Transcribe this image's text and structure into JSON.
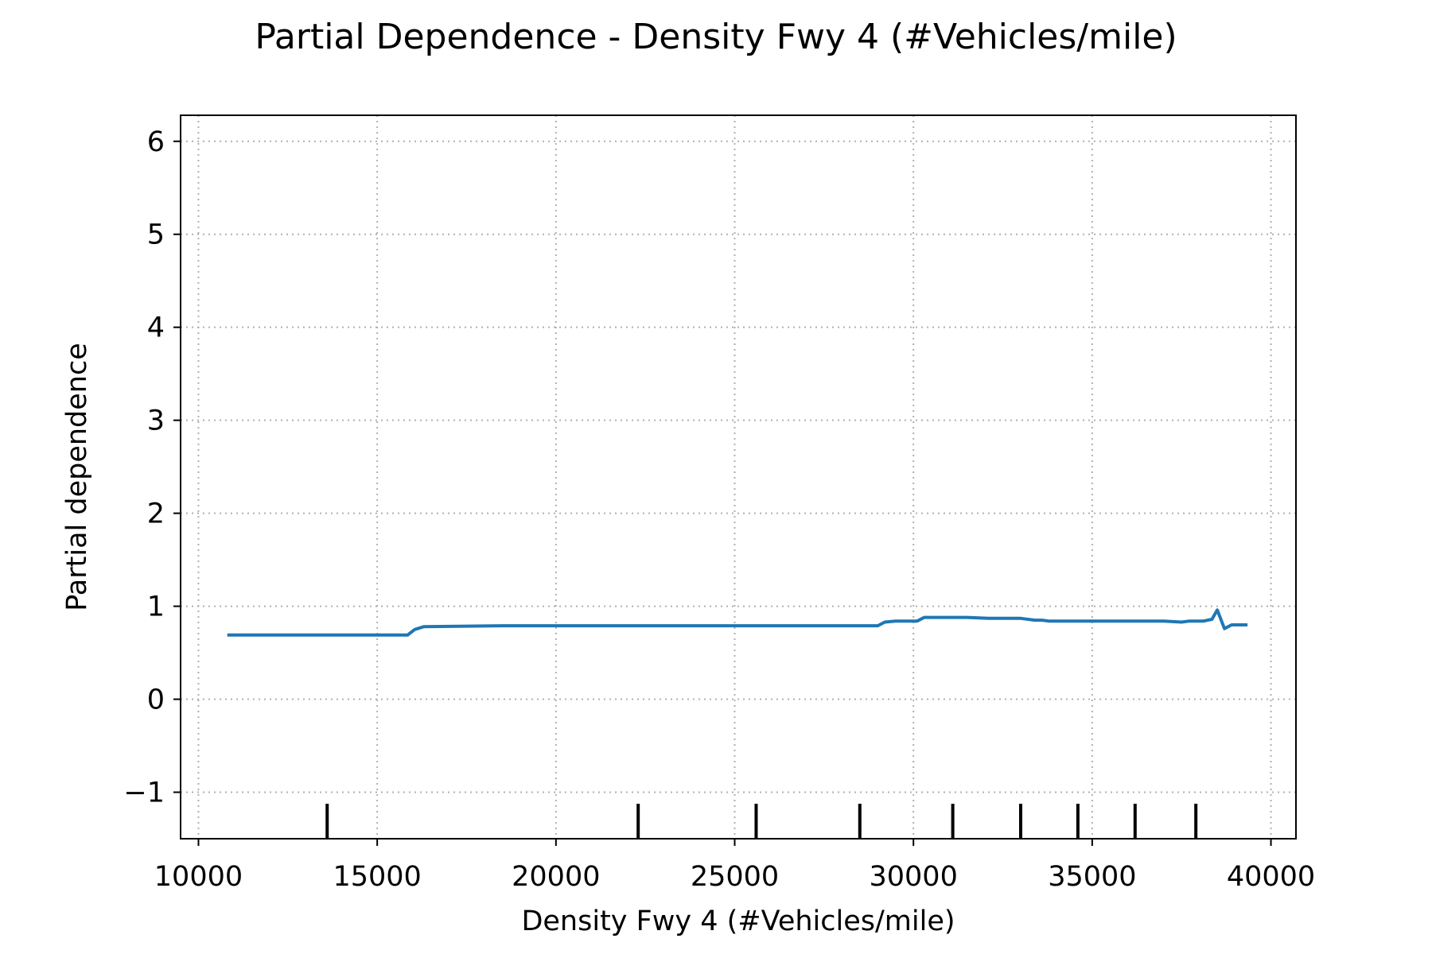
{
  "chart_data": {
    "type": "line",
    "title": "Partial Dependence - Density Fwy 4 (#Vehicles/mile)",
    "xlabel": "Density Fwy 4 (#Vehicles/mile)",
    "ylabel": "Partial dependence",
    "xlim": [
      9500,
      40700
    ],
    "ylim": [
      -1.5,
      6.28
    ],
    "grid": true,
    "x_ticks": [
      10000,
      15000,
      20000,
      25000,
      30000,
      35000,
      40000
    ],
    "x_tick_labels": [
      "10000",
      "15000",
      "20000",
      "25000",
      "30000",
      "35000",
      "40000"
    ],
    "y_ticks": [
      -1,
      0,
      1,
      2,
      3,
      4,
      5,
      6
    ],
    "y_tick_labels": [
      "−1",
      "0",
      "1",
      "2",
      "3",
      "4",
      "5",
      "6"
    ],
    "series": [
      {
        "color": "#1f77b4",
        "x": [
          10850,
          15850,
          16050,
          16300,
          18500,
          28400,
          29000,
          29200,
          29500,
          29800,
          30100,
          30300,
          30600,
          31000,
          31500,
          32100,
          32300,
          32700,
          33000,
          33400,
          33600,
          33800,
          34200,
          34700,
          35000,
          35500,
          36000,
          36500,
          37000,
          37500,
          37700,
          37900,
          38100,
          38350,
          38500,
          38700,
          38900,
          39300
        ],
        "y": [
          0.69,
          0.69,
          0.75,
          0.78,
          0.79,
          0.79,
          0.79,
          0.83,
          0.84,
          0.84,
          0.84,
          0.88,
          0.88,
          0.88,
          0.88,
          0.87,
          0.87,
          0.87,
          0.87,
          0.85,
          0.85,
          0.84,
          0.84,
          0.84,
          0.84,
          0.84,
          0.84,
          0.84,
          0.84,
          0.83,
          0.84,
          0.84,
          0.84,
          0.86,
          0.96,
          0.76,
          0.8,
          0.8
        ]
      }
    ],
    "rug_deciles": [
      13600,
      22300,
      25600,
      28500,
      31100,
      33000,
      34600,
      36200,
      37900
    ]
  }
}
